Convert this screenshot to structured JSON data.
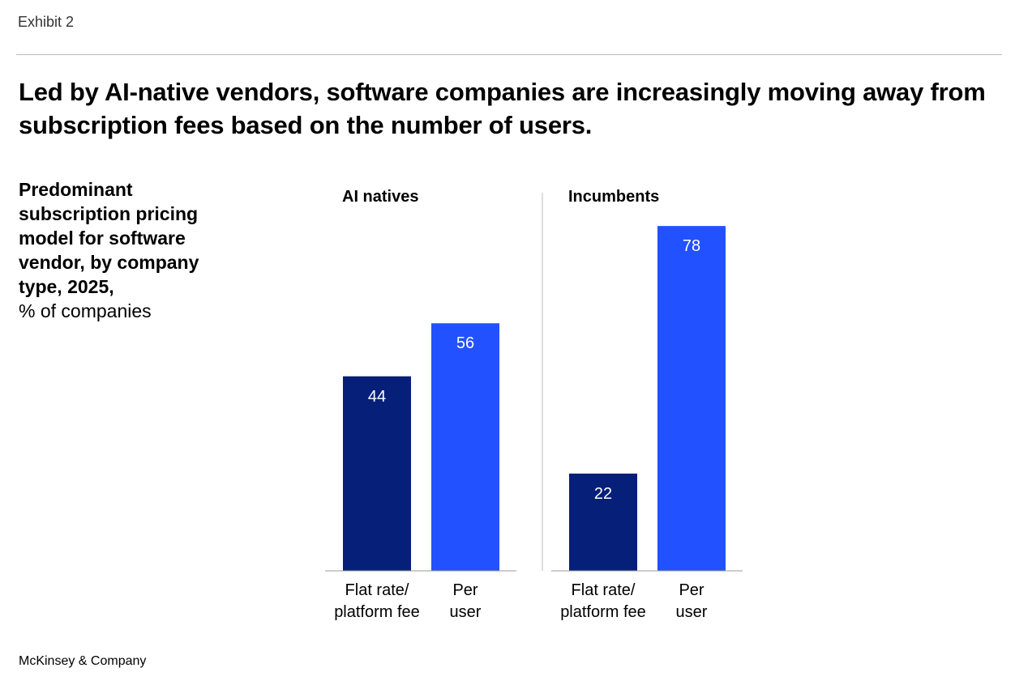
{
  "header": {
    "exhibit": "Exhibit 2",
    "title": "Led by AI-native vendors, software companies are increasingly moving away from subscription fees based on the number of users.",
    "footer": "McKinsey & Company"
  },
  "chart_data": {
    "type": "bar",
    "title_bold": "Predominant subscription pricing model for software vendor, by company type, 2025,",
    "unit": "% of companies",
    "colors": {
      "Flat rate/platform fee": "#061f79",
      "Per user": "#2251ff"
    },
    "ylim": [
      0,
      80
    ],
    "groups": [
      {
        "name": "AI natives",
        "categories": [
          [
            "Flat rate/",
            "platform fee"
          ],
          [
            "Per",
            "user"
          ]
        ],
        "values": [
          44,
          56
        ]
      },
      {
        "name": "Incumbents",
        "categories": [
          [
            "Flat rate/",
            "platform fee"
          ],
          [
            "Per",
            "user"
          ]
        ],
        "values": [
          22,
          78
        ]
      }
    ]
  }
}
